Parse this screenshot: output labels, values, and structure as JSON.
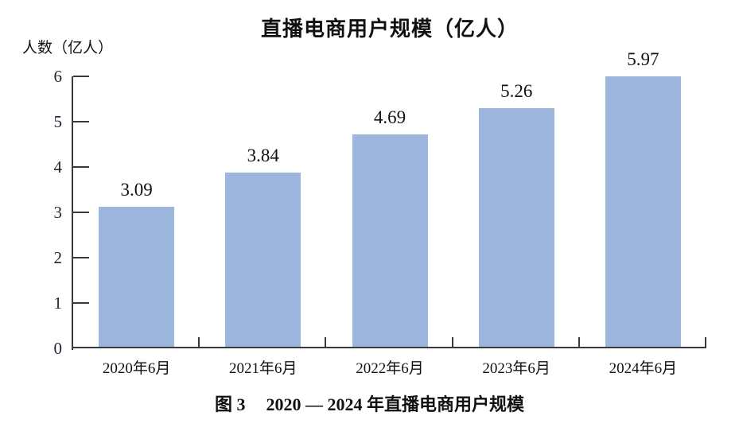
{
  "page": {
    "background": "#ffffff"
  },
  "chart_data": {
    "type": "bar",
    "title": "直播电商用户规模（亿人）",
    "ylabel": "人数（亿人）",
    "xlabel": "",
    "categories": [
      "2020年6月",
      "2021年6月",
      "2022年6月",
      "2023年6月",
      "2024年6月"
    ],
    "values": [
      3.09,
      3.84,
      4.69,
      5.26,
      5.97
    ],
    "value_labels": [
      "3.09",
      "3.84",
      "4.69",
      "5.26",
      "5.97"
    ],
    "ylim": [
      0,
      6
    ],
    "yticks": [
      0,
      1,
      2,
      3,
      4,
      5,
      6
    ],
    "grid": false,
    "legend": "none",
    "bar_color": "#9db6de",
    "axis_color": "#3a3a3a",
    "text_color": "#111111"
  },
  "caption": {
    "prefix": "图 3",
    "text": "2020 — 2024 年直播电商用户规模"
  }
}
